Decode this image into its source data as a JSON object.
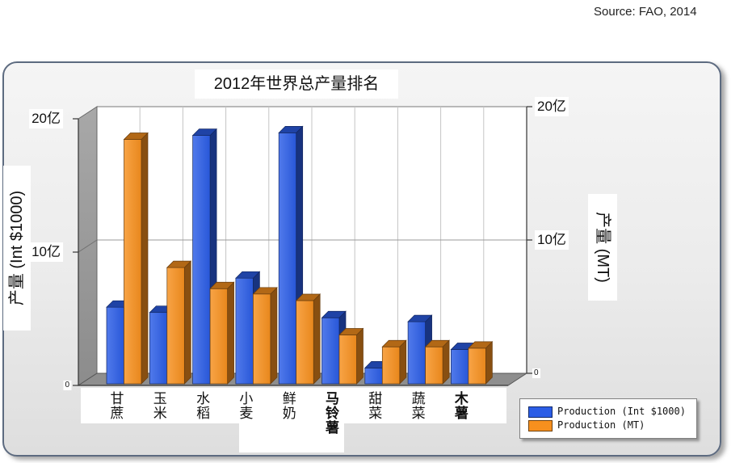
{
  "source": "Source: FAO, 2014",
  "chart_data": {
    "type": "bar",
    "title": "2012年世界总产量排名",
    "categories": [
      "甘蔗",
      "玉米",
      "水稻",
      "小麦",
      "鲜奶",
      "马铃薯",
      "甜菜",
      "蔬菜",
      "木薯"
    ],
    "series": [
      {
        "name": "Production (Int $1000)",
        "color": "#2b5de6",
        "values": [
          5.8,
          5.4,
          18.8,
          8.0,
          19.0,
          5.0,
          1.2,
          4.7,
          2.6
        ]
      },
      {
        "name": "Production (MT)",
        "color": "#f7901e",
        "values": [
          18.5,
          8.8,
          7.2,
          6.8,
          6.3,
          3.7,
          2.8,
          2.8,
          2.7
        ]
      }
    ],
    "xlabel": "",
    "ylabel": "产量 (Int $1000)",
    "ylabel_right": "产量 (MT)",
    "ylim": [
      0,
      20
    ],
    "ylim_right": [
      0,
      20
    ],
    "y_ticks": [
      {
        "value": 0,
        "label": "0"
      },
      {
        "value": 10,
        "label": "10亿"
      },
      {
        "value": 20,
        "label": "20亿"
      }
    ],
    "y_ticks_right": [
      {
        "value": 0,
        "label": "0"
      },
      {
        "value": 10,
        "label": "10亿"
      },
      {
        "value": 20,
        "label": "20亿"
      }
    ],
    "grid": true,
    "legend_position": "bottom-right"
  }
}
